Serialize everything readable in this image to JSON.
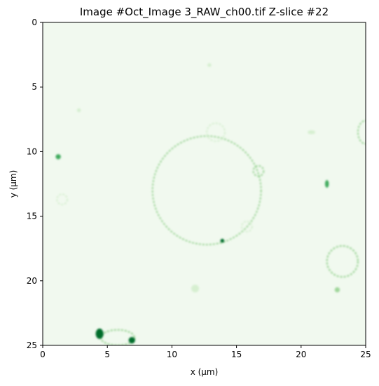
{
  "chart_data": {
    "type": "heatmap",
    "title": "Image #Oct_Image 3_RAW_ch00.tif Z-slice #22",
    "xlabel": "x (μm)",
    "ylabel": "y (μm)",
    "xlim": [
      0,
      25
    ],
    "ylim": [
      25,
      0
    ],
    "x_ticks": [
      "0",
      "5",
      "10",
      "15",
      "20",
      "25"
    ],
    "y_ticks": [
      "0",
      "5",
      "10",
      "15",
      "20",
      "25"
    ],
    "x_tick_values": [
      0,
      5,
      10,
      15,
      20,
      25
    ],
    "y_tick_values": [
      0,
      5,
      10,
      15,
      20,
      25
    ],
    "colormap": "Greens",
    "colors": {
      "background": "#f1f9ef",
      "faint": "#d6efd0",
      "mid": "#9fd69a",
      "strong": "#41ab5d",
      "peak": "#006d2c"
    },
    "features": [
      {
        "name": "large-cell",
        "shape": "ring",
        "cx": 12.7,
        "cy": 13.0,
        "rx": 4.2,
        "ry": 4.2,
        "intensity": 0.35
      },
      {
        "name": "cell-top-bleb",
        "shape": "ring",
        "cx": 13.4,
        "cy": 8.5,
        "rx": 0.7,
        "ry": 0.7,
        "intensity": 0.3
      },
      {
        "name": "cell-right-bleb",
        "shape": "ring",
        "cx": 16.7,
        "cy": 11.5,
        "rx": 0.4,
        "ry": 0.4,
        "intensity": 0.35
      },
      {
        "name": "cell-lower-bleb",
        "shape": "ring",
        "cx": 15.8,
        "cy": 15.8,
        "rx": 0.4,
        "ry": 0.4,
        "intensity": 0.3
      },
      {
        "name": "right-cell",
        "shape": "ring",
        "cx": 23.2,
        "cy": 18.5,
        "rx": 1.2,
        "ry": 1.2,
        "intensity": 0.5
      },
      {
        "name": "edge-cell",
        "shape": "ring",
        "cx": 25.0,
        "cy": 8.5,
        "rx": 0.6,
        "ry": 0.9,
        "intensity": 0.35
      },
      {
        "name": "left-ring",
        "shape": "ring",
        "cx": 1.5,
        "cy": 13.7,
        "rx": 0.4,
        "ry": 0.4,
        "intensity": 0.3
      },
      {
        "name": "bottom-cluster",
        "shape": "ring",
        "cx": 5.8,
        "cy": 24.4,
        "rx": 1.3,
        "ry": 0.6,
        "intensity": 0.5
      },
      {
        "name": "spot-1",
        "shape": "spot",
        "cx": 1.2,
        "cy": 10.4,
        "rx": 0.2,
        "ry": 0.2,
        "intensity": 0.8
      },
      {
        "name": "spot-2",
        "shape": "spot",
        "cx": 13.9,
        "cy": 16.9,
        "rx": 0.15,
        "ry": 0.15,
        "intensity": 1.0
      },
      {
        "name": "spot-3",
        "shape": "spot",
        "cx": 22.0,
        "cy": 12.5,
        "rx": 0.15,
        "ry": 0.3,
        "intensity": 0.6
      },
      {
        "name": "spot-4",
        "shape": "spot",
        "cx": 4.4,
        "cy": 24.1,
        "rx": 0.3,
        "ry": 0.4,
        "intensity": 0.9
      },
      {
        "name": "spot-5",
        "shape": "spot",
        "cx": 6.9,
        "cy": 24.6,
        "rx": 0.25,
        "ry": 0.25,
        "intensity": 0.9
      },
      {
        "name": "spot-6",
        "shape": "spot",
        "cx": 2.8,
        "cy": 6.8,
        "rx": 0.15,
        "ry": 0.15,
        "intensity": 0.3
      },
      {
        "name": "spot-7",
        "shape": "spot",
        "cx": 12.9,
        "cy": 3.3,
        "rx": 0.15,
        "ry": 0.15,
        "intensity": 0.3
      },
      {
        "name": "spot-8",
        "shape": "spot",
        "cx": 20.8,
        "cy": 8.5,
        "rx": 0.3,
        "ry": 0.15,
        "intensity": 0.3
      },
      {
        "name": "spot-9",
        "shape": "spot",
        "cx": 11.8,
        "cy": 20.6,
        "rx": 0.3,
        "ry": 0.3,
        "intensity": 0.2
      },
      {
        "name": "spot-10",
        "shape": "spot",
        "cx": 22.8,
        "cy": 20.7,
        "rx": 0.2,
        "ry": 0.2,
        "intensity": 0.35
      }
    ]
  }
}
